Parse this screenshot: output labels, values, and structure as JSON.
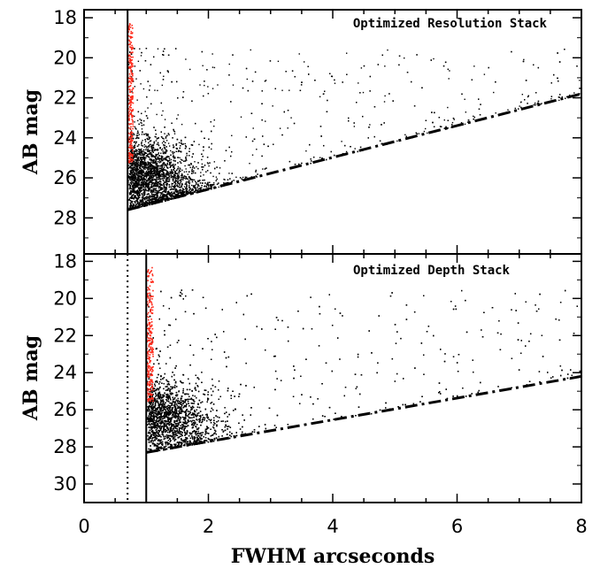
{
  "chart_data": [
    {
      "type": "scatter",
      "title": "Optimized Resolution Stack",
      "xlabel": "FWHM arcseconds",
      "ylabel": "AB mag",
      "xlim": [
        0,
        8
      ],
      "ylim": [
        29.8,
        17.6
      ],
      "y_inverted": true,
      "x_ticks": [
        "0",
        "2",
        "4",
        "6",
        "8"
      ],
      "y_ticks": [
        "18",
        "20",
        "22",
        "24",
        "26",
        "28"
      ],
      "y_tick_values": [
        18,
        20,
        22,
        24,
        26,
        28
      ],
      "vertical_lines": [
        {
          "x": 0.7,
          "style": "solid"
        }
      ],
      "limit_line": {
        "style": "dash-dot",
        "points": [
          [
            0.7,
            27.6
          ],
          [
            8.0,
            21.8
          ]
        ]
      },
      "series": [
        {
          "color": "#ff2a1a",
          "description_values": {
            "x_range": [
              0.7,
              0.78
            ],
            "y_range": [
              18.2,
              25.2
            ]
          }
        },
        {
          "color": "#000000",
          "description_values": {
            "x_range": [
              0.7,
              8.0
            ],
            "y_range": [
              19.5,
              27.8
            ]
          }
        }
      ]
    },
    {
      "type": "scatter",
      "title": "Optimized Depth Stack",
      "xlabel": "FWHM arcseconds",
      "ylabel": "AB mag",
      "xlim": [
        0,
        8
      ],
      "ylim": [
        31.0,
        17.6
      ],
      "y_inverted": true,
      "x_ticks": [
        "0",
        "2",
        "4",
        "6",
        "8"
      ],
      "y_ticks": [
        "18",
        "20",
        "22",
        "24",
        "26",
        "28",
        "30"
      ],
      "y_tick_values": [
        18,
        20,
        22,
        24,
        26,
        28,
        30
      ],
      "vertical_lines": [
        {
          "x": 0.7,
          "style": "dotted"
        },
        {
          "x": 1.0,
          "style": "solid"
        }
      ],
      "limit_line": {
        "style": "dash-dot",
        "points": [
          [
            1.0,
            28.3
          ],
          [
            8.0,
            24.2
          ]
        ]
      },
      "series": [
        {
          "color": "#ff2a1a",
          "description_values": {
            "x_range": [
              1.0,
              1.1
            ],
            "y_range": [
              18.3,
              25.5
            ]
          }
        },
        {
          "color": "#000000",
          "description_values": {
            "x_range": [
              1.0,
              8.0
            ],
            "y_range": [
              19.0,
              28.5
            ]
          }
        }
      ]
    }
  ]
}
